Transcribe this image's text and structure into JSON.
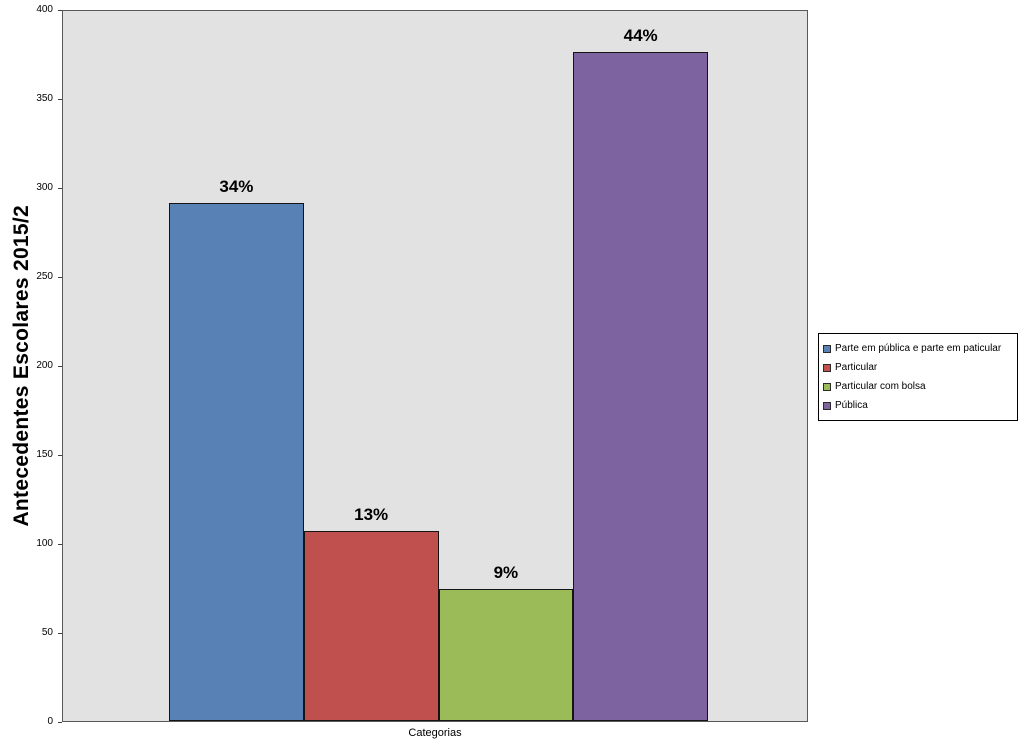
{
  "chart_data": {
    "type": "bar",
    "title": "",
    "ylabel": "Antecedentes Escolares 2015/2",
    "xlabel": "Categorias",
    "ylim": [
      0,
      400
    ],
    "yticks": [
      0,
      50,
      100,
      150,
      200,
      250,
      300,
      350,
      400
    ],
    "grid": false,
    "legend_position": "right",
    "plot_background": "#e2e2e2",
    "series": [
      {
        "name": "Parte em pública e parte em paticular",
        "value": 291,
        "label": "34%",
        "color": "#5881B5"
      },
      {
        "name": "Particular",
        "value": 107,
        "label": "13%",
        "color": "#C0504D"
      },
      {
        "name": "Particular com bolsa",
        "value": 74,
        "label": "9%",
        "color": "#9BBB59"
      },
      {
        "name": "Pública",
        "value": 376,
        "label": "44%",
        "color": "#7E63A1"
      }
    ]
  }
}
